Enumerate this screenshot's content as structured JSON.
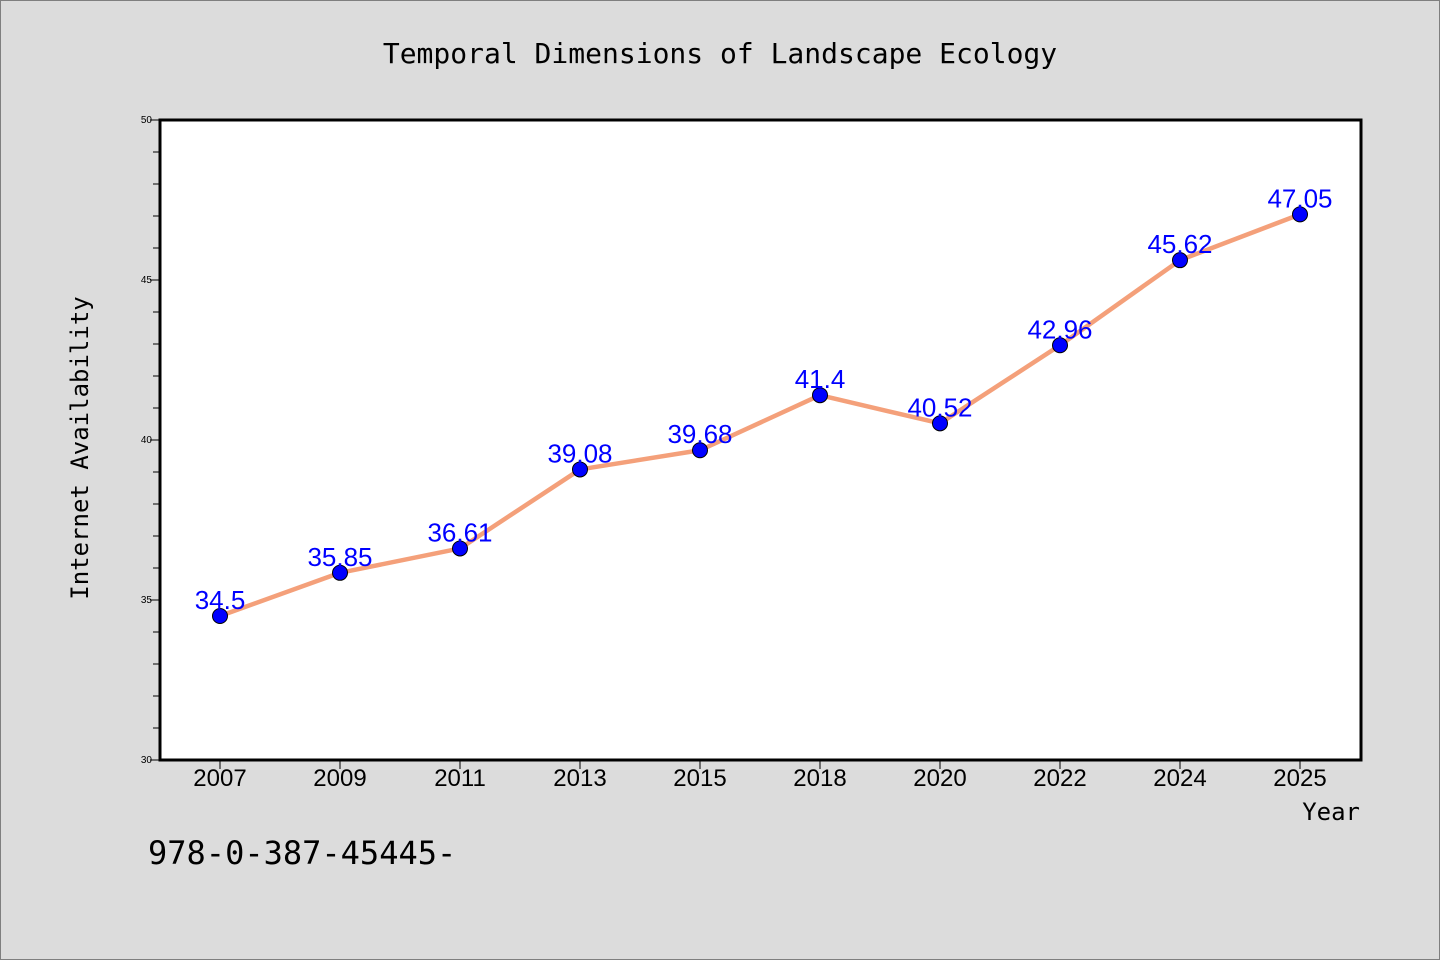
{
  "chart_data": {
    "type": "line",
    "title": "Temporal Dimensions of Landscape Ecology",
    "xlabel": "Year",
    "ylabel": "Internet Availability",
    "categories": [
      "2007",
      "2009",
      "2011",
      "2013",
      "2015",
      "2018",
      "2020",
      "2022",
      "2024",
      "2025"
    ],
    "series": [
      {
        "values": [
          34.5,
          35.85,
          36.61,
          39.08,
          39.68,
          41.4,
          40.52,
          42.96,
          45.62,
          47.05
        ],
        "data_labels": [
          "34.5",
          "35.85",
          "36.61",
          "39.08",
          "39.68",
          "41.4",
          "40.52",
          "42.96",
          "45.62",
          "47.05"
        ]
      }
    ],
    "ylim": [
      30,
      50
    ],
    "yticks": [
      "30",
      "35",
      "40",
      "45",
      "50"
    ],
    "grid": false,
    "line_color": "#f4a07a",
    "marker_color": "#0000ff",
    "label_color": "#0000ff"
  },
  "footer_text": "978-0-387-45445-"
}
